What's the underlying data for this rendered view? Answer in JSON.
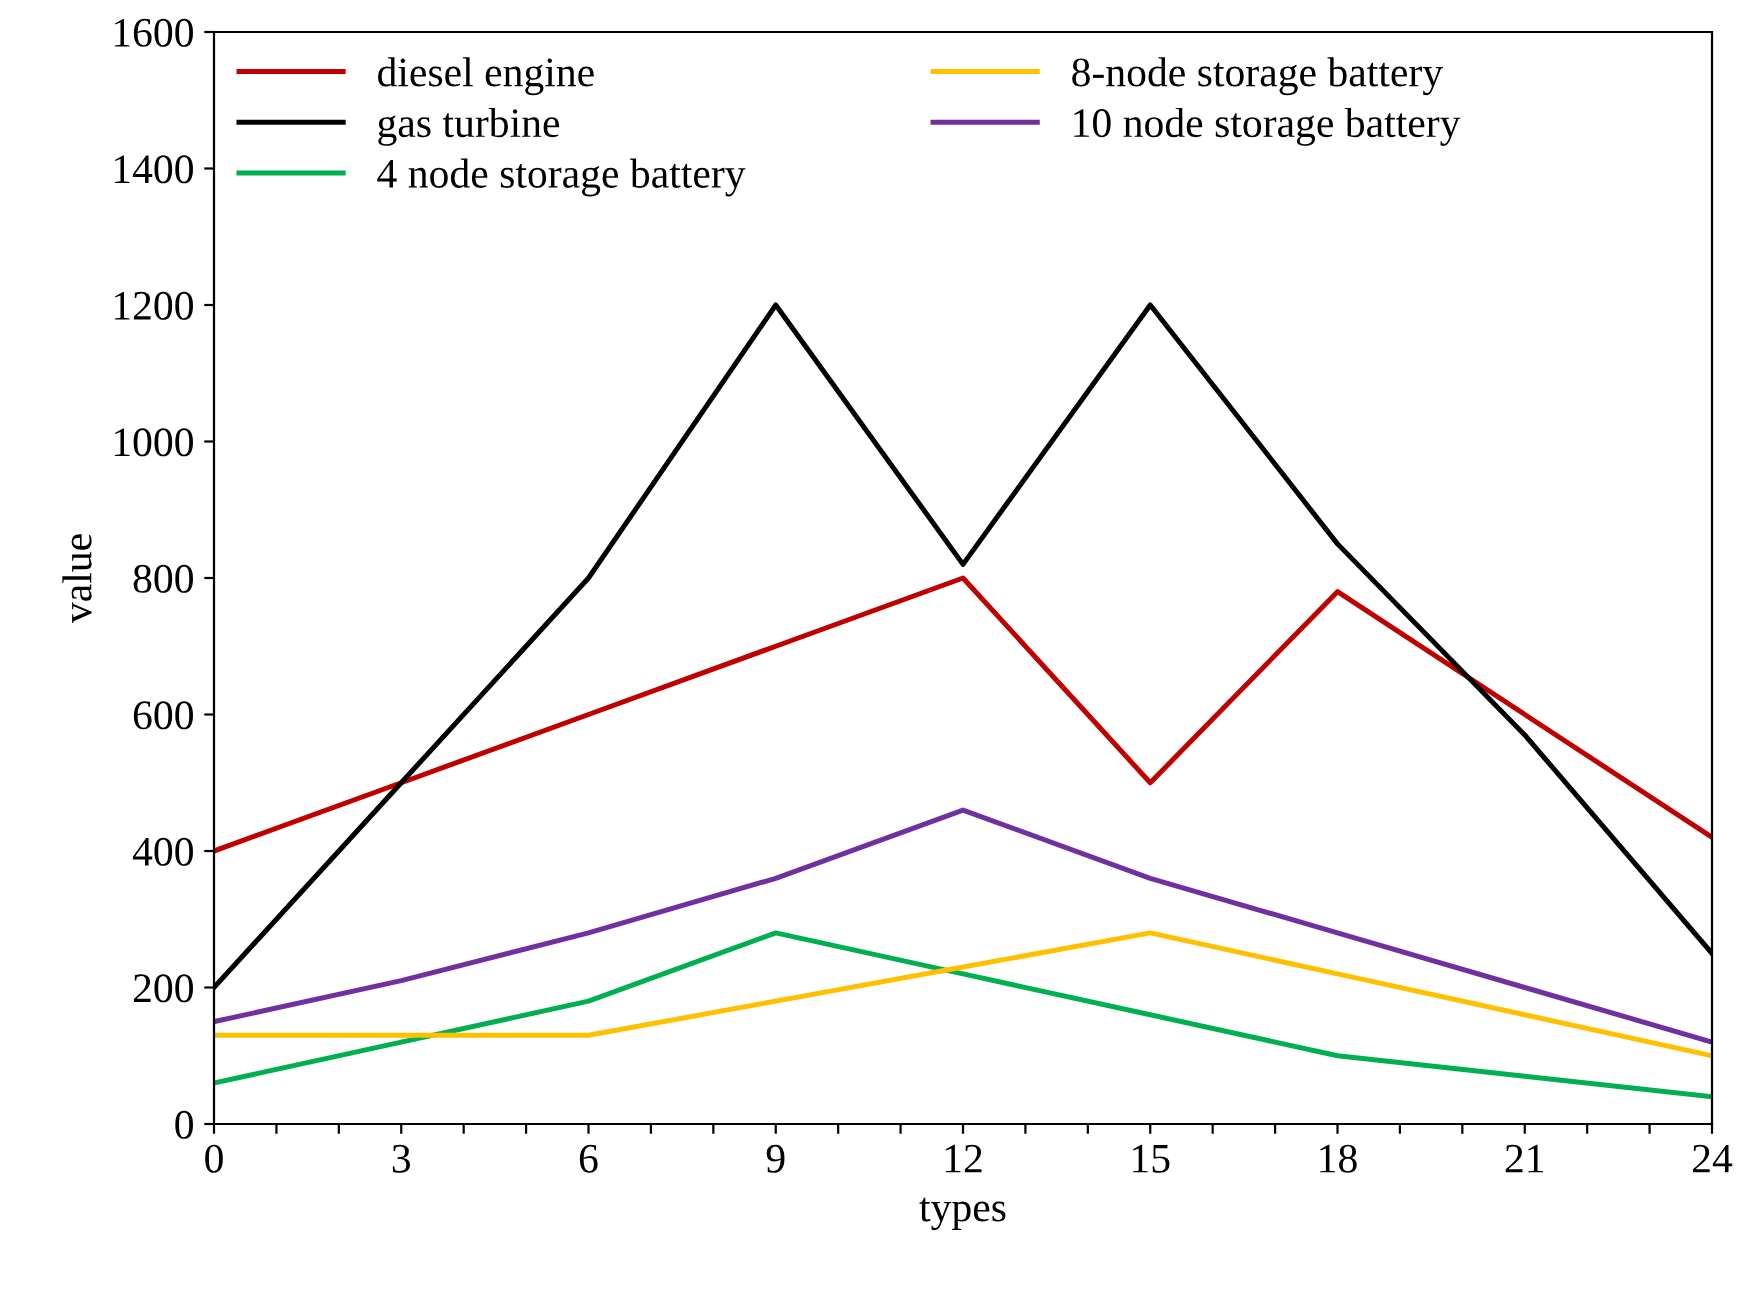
{
  "chart_data": {
    "type": "line",
    "xlabel": "types",
    "ylabel": "value",
    "x": [
      0,
      3,
      6,
      9,
      12,
      15,
      18,
      21,
      24
    ],
    "series": [
      {
        "name": "diesel engine",
        "color": "#c00000",
        "values": [
          400,
          500,
          600,
          700,
          800,
          500,
          780,
          600,
          420
        ]
      },
      {
        "name": "gas turbine",
        "color": "#000000",
        "values": [
          200,
          500,
          800,
          1200,
          820,
          1200,
          850,
          570,
          250
        ]
      },
      {
        "name": "4 node storage battery",
        "color": "#00b050",
        "values": [
          60,
          120,
          180,
          280,
          220,
          160,
          100,
          70,
          40
        ]
      },
      {
        "name": "8-node storage battery",
        "color": "#ffc000",
        "values": [
          130,
          130,
          130,
          180,
          230,
          280,
          220,
          160,
          100
        ]
      },
      {
        "name": "10 node storage battery",
        "color": "#7030a0",
        "values": [
          150,
          210,
          280,
          360,
          460,
          360,
          280,
          200,
          120
        ]
      }
    ],
    "xlim": [
      0,
      24
    ],
    "ylim": [
      0,
      1600
    ],
    "xticks": [
      0,
      {
        "value": 1,
        "label": null
      },
      {
        "value": 2,
        "label": null
      },
      3,
      {
        "value": 4,
        "label": null
      },
      {
        "value": 5,
        "label": null
      },
      6,
      {
        "value": 7,
        "label": null
      },
      {
        "value": 8,
        "label": null
      },
      9,
      {
        "value": 10,
        "label": null
      },
      {
        "value": 11,
        "label": null
      },
      12,
      {
        "value": 13,
        "label": null
      },
      {
        "value": 14,
        "label": null
      },
      15,
      {
        "value": 16,
        "label": null
      },
      {
        "value": 17,
        "label": null
      },
      18,
      {
        "value": 19,
        "label": null
      },
      {
        "value": 20,
        "label": null
      },
      21,
      {
        "value": 22,
        "label": null
      },
      {
        "value": 23,
        "label": null
      },
      24
    ],
    "yticks": [
      0,
      200,
      400,
      600,
      800,
      1000,
      1200,
      1400,
      1600
    ],
    "grid": false,
    "legend": "top",
    "marker": "none",
    "line_style": "solid"
  }
}
